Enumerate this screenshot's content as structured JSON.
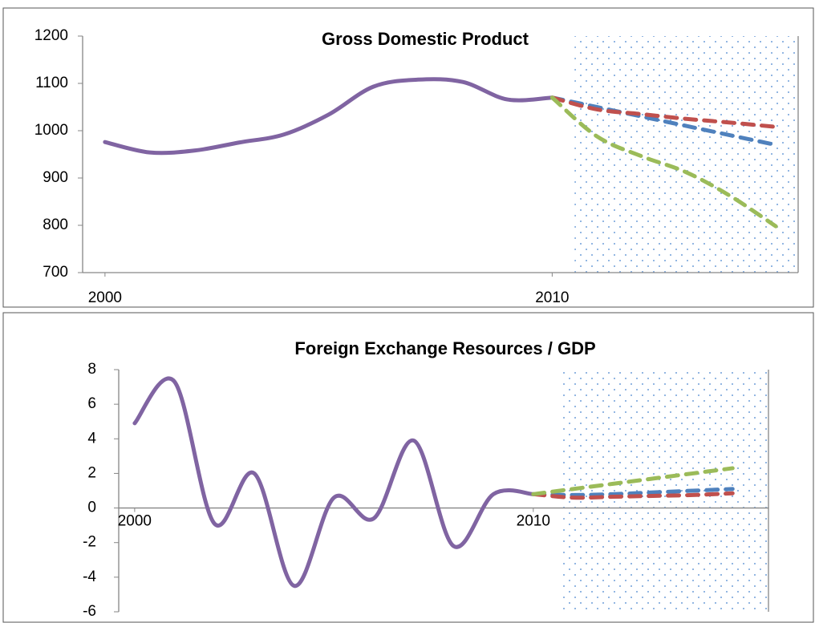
{
  "chart_data": [
    {
      "type": "line",
      "title": "Gross Domestic Product",
      "x": [
        2000,
        2001,
        2002,
        2003,
        2004,
        2005,
        2006,
        2007,
        2008,
        2009,
        2010,
        2011,
        2012,
        2013,
        2014,
        2015
      ],
      "xlim": [
        1999.5,
        2015.5
      ],
      "xticks": [
        2000,
        2010
      ],
      "ylim": [
        700,
        1200
      ],
      "yticks": [
        700,
        800,
        900,
        1000,
        1100,
        1200
      ],
      "shaded_region": [
        2010.5,
        2015.5
      ],
      "series": [
        {
          "color": "#8064a2",
          "dashed": false,
          "values": [
            976,
            954,
            958,
            975,
            992,
            1034,
            1093,
            1108,
            1103,
            1066,
            1070,
            null,
            null,
            null,
            null,
            null
          ]
        },
        {
          "color": "#4f81bd",
          "dashed": true,
          "values": [
            null,
            null,
            null,
            null,
            null,
            null,
            null,
            null,
            null,
            null,
            1070,
            1050,
            1030,
            1010,
            990,
            970
          ]
        },
        {
          "color": "#c0504d",
          "dashed": true,
          "values": [
            null,
            null,
            null,
            null,
            null,
            null,
            null,
            null,
            null,
            null,
            1070,
            1045,
            1035,
            1025,
            1017,
            1008
          ]
        },
        {
          "color": "#9bbb59",
          "dashed": true,
          "values": [
            null,
            null,
            null,
            null,
            null,
            null,
            null,
            null,
            null,
            null,
            1070,
            988,
            946,
            912,
            861,
            798
          ]
        }
      ]
    },
    {
      "type": "line",
      "title": "Foreign Exchange Resources / GDP",
      "x": [
        2000,
        2001,
        2002,
        2003,
        2004,
        2005,
        2006,
        2007,
        2008,
        2009,
        2010,
        2011,
        2012,
        2013,
        2014,
        2015
      ],
      "xlim": [
        1999.6,
        2015.9
      ],
      "xticks": [
        2000,
        2010
      ],
      "ylim": [
        -6,
        8
      ],
      "yticks": [
        -6,
        -4,
        -2,
        0,
        2,
        4,
        6,
        8
      ],
      "shaded_region": [
        2010.7,
        2015.9
      ],
      "series": [
        {
          "color": "#8064a2",
          "dashed": false,
          "values": [
            4.9,
            7.3,
            -0.9,
            2.0,
            -4.5,
            0.6,
            -0.6,
            3.9,
            -2.2,
            0.8,
            0.8,
            null,
            null,
            null,
            null,
            null
          ]
        },
        {
          "color": "#4f81bd",
          "dashed": true,
          "values": [
            null,
            null,
            null,
            null,
            null,
            null,
            null,
            null,
            null,
            null,
            0.8,
            0.75,
            0.8,
            0.9,
            1.0,
            1.1
          ]
        },
        {
          "color": "#c0504d",
          "dashed": true,
          "values": [
            null,
            null,
            null,
            null,
            null,
            null,
            null,
            null,
            null,
            null,
            0.8,
            0.6,
            0.65,
            0.7,
            0.75,
            0.85
          ]
        },
        {
          "color": "#9bbb59",
          "dashed": true,
          "values": [
            null,
            null,
            null,
            null,
            null,
            null,
            null,
            null,
            null,
            null,
            0.8,
            1.1,
            1.4,
            1.7,
            2.0,
            2.3
          ]
        }
      ]
    }
  ]
}
